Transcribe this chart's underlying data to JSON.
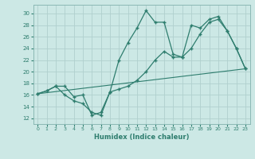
{
  "xlabel": "Humidex (Indice chaleur)",
  "xlim": [
    -0.5,
    23.5
  ],
  "ylim": [
    11,
    31.5
  ],
  "xticks": [
    0,
    1,
    2,
    3,
    4,
    5,
    6,
    7,
    8,
    9,
    10,
    11,
    12,
    13,
    14,
    15,
    16,
    17,
    18,
    19,
    20,
    21,
    22,
    23
  ],
  "yticks": [
    12,
    14,
    16,
    18,
    20,
    22,
    24,
    26,
    28,
    30
  ],
  "bg_color": "#cce8e5",
  "line_color": "#2e7d6e",
  "grid_color": "#b0d0ce",
  "line1_x": [
    0,
    1,
    2,
    3,
    4,
    5,
    6,
    7,
    8,
    9,
    10,
    11,
    12,
    13,
    14,
    15,
    16,
    17,
    18,
    19,
    20,
    21,
    22,
    23
  ],
  "line1_y": [
    16.2,
    16.7,
    17.5,
    17.5,
    15.7,
    16.0,
    12.5,
    13.0,
    16.5,
    22.0,
    25.0,
    27.5,
    30.5,
    28.5,
    28.5,
    23.0,
    22.5,
    28.0,
    27.5,
    29.0,
    29.5,
    27.0,
    24.0,
    20.5
  ],
  "line2_x": [
    0,
    1,
    2,
    3,
    4,
    5,
    6,
    7,
    8,
    9,
    10,
    11,
    12,
    13,
    14,
    15,
    16,
    17,
    18,
    19,
    20,
    21,
    22,
    23
  ],
  "line2_y": [
    16.2,
    16.7,
    17.5,
    16.0,
    15.0,
    14.5,
    13.0,
    12.5,
    16.5,
    17.0,
    17.5,
    18.5,
    20.0,
    22.0,
    23.5,
    22.5,
    22.5,
    24.0,
    26.5,
    28.5,
    29.0,
    27.0,
    24.0,
    20.5
  ],
  "line3_x": [
    0,
    23
  ],
  "line3_y": [
    16.2,
    20.5
  ]
}
